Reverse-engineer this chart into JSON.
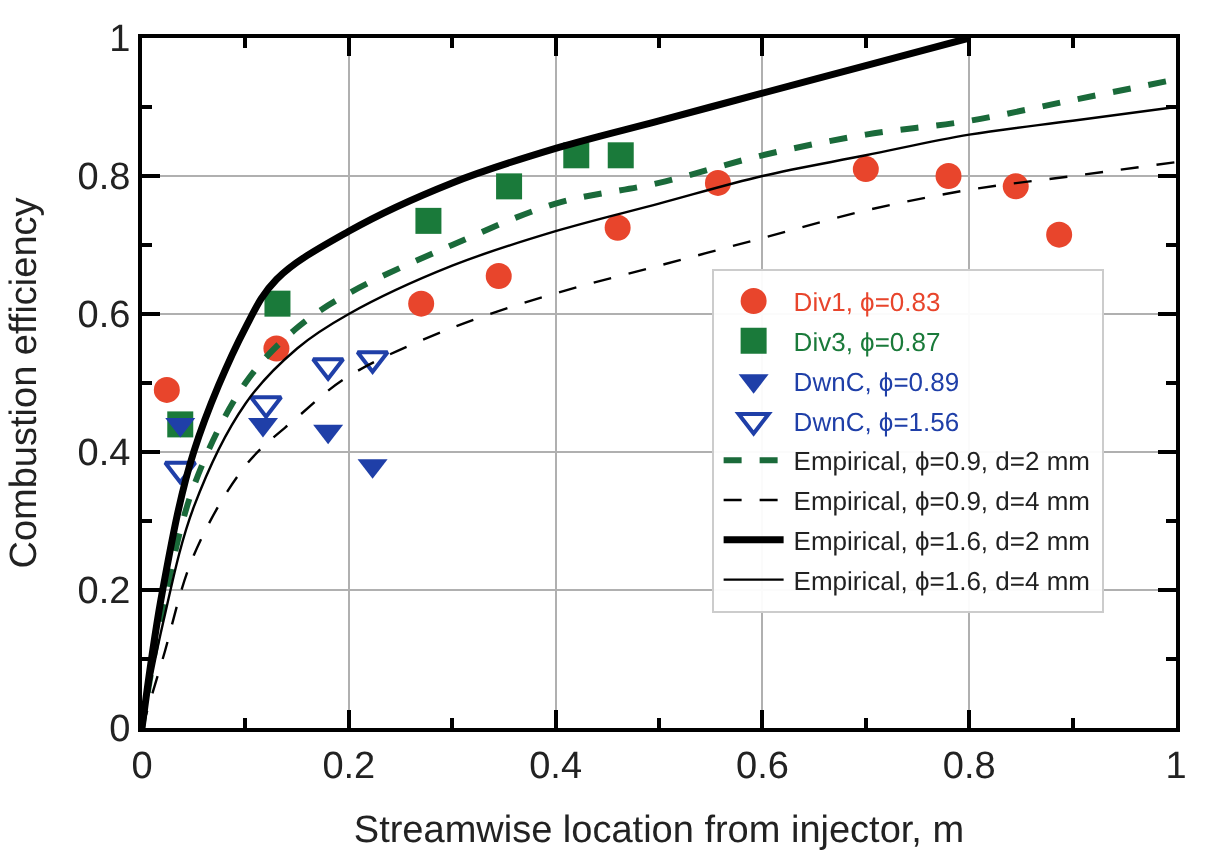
{
  "chart_data": {
    "type": "scatter",
    "xlabel": "Streamwise location from injector, m",
    "ylabel": "Combustion efficiency",
    "xlim": [
      0,
      1
    ],
    "ylim": [
      0,
      1
    ],
    "xticks": [
      0,
      {
        "value": 0.1,
        "label": null
      },
      0.2,
      {
        "value": 0.3,
        "label": null
      },
      0.4,
      {
        "value": 0.5,
        "label": null
      },
      0.6,
      {
        "value": 0.7,
        "label": null
      },
      0.8,
      {
        "value": 0.9,
        "label": null
      },
      1
    ],
    "yticks": [
      0,
      {
        "value": 0.1,
        "label": null
      },
      0.2,
      {
        "value": 0.3,
        "label": null
      },
      0.4,
      {
        "value": 0.5,
        "label": null
      },
      0.6,
      {
        "value": 0.7,
        "label": null
      },
      0.8,
      {
        "value": 0.9,
        "label": null
      },
      1
    ],
    "grid": true,
    "legend": "right",
    "series": [
      {
        "name": "Div1, ϕ=0.83",
        "color": "#e8452c",
        "marker": "circle",
        "x": [
          0.024,
          0.13,
          0.27,
          0.345,
          0.46,
          0.557,
          0.7,
          0.78,
          0.845,
          0.887
        ],
        "values": [
          0.49,
          0.55,
          0.615,
          0.655,
          0.725,
          0.79,
          0.81,
          0.8,
          0.785,
          0.715
        ]
      },
      {
        "name": "Div3, ϕ=0.87",
        "color": "#1a7a3a",
        "marker": "square",
        "x": [
          0.037,
          0.131,
          0.277,
          0.355,
          0.42,
          0.463
        ],
        "values": [
          0.44,
          0.615,
          0.735,
          0.785,
          0.83,
          0.83
        ]
      },
      {
        "name": "DwnC, ϕ=0.89",
        "color": "#1f3fa8",
        "marker": "triangle",
        "x": [
          0.037,
          0.117,
          0.18,
          0.223
        ],
        "values": [
          0.44,
          0.44,
          0.43,
          0.38
        ]
      },
      {
        "name": "DwnC, ϕ=1.56",
        "color": "#1f3fa8",
        "marker": "triangle",
        "x": [
          0.037,
          0.12,
          0.18,
          0.223
        ],
        "values": [
          0.375,
          0.47,
          0.525,
          0.535
        ]
      },
      {
        "name": "Empirical, ϕ=0.9, d=2 mm",
        "type": "line",
        "color": "#1a6a3a",
        "line_style": "dashed",
        "x": [
          0,
          0.02,
          0.05,
          0.1,
          0.15,
          0.2,
          0.3,
          0.4,
          0.5,
          0.6,
          0.7,
          0.8,
          0.9,
          1
        ],
        "values": [
          0,
          0.17,
          0.35,
          0.5,
          0.58,
          0.63,
          0.7,
          0.76,
          0.79,
          0.83,
          0.86,
          0.88,
          0.91,
          0.94
        ]
      },
      {
        "name": "Empirical, ϕ=0.9, d=4 mm",
        "type": "line",
        "color": "#000000",
        "line_style": "dashed",
        "x": [
          0,
          0.02,
          0.05,
          0.1,
          0.15,
          0.2,
          0.3,
          0.4,
          0.5,
          0.6,
          0.7,
          0.8,
          0.9,
          1
        ],
        "values": [
          0,
          0.1,
          0.25,
          0.38,
          0.45,
          0.51,
          0.58,
          0.63,
          0.67,
          0.71,
          0.75,
          0.78,
          0.8,
          0.82
        ]
      },
      {
        "name": "Empirical, ϕ=1.6, d=2 mm",
        "type": "line",
        "color": "#000000",
        "line_style": "solid",
        "x": [
          0,
          0.02,
          0.05,
          0.1,
          0.13,
          0.2,
          0.3,
          0.4,
          0.5,
          0.6,
          0.7,
          0.8
        ],
        "values": [
          0,
          0.2,
          0.4,
          0.58,
          0.65,
          0.72,
          0.79,
          0.84,
          0.88,
          0.92,
          0.96,
          1.0
        ]
      },
      {
        "name": "Empirical, ϕ=1.6, d=4 mm",
        "type": "line",
        "color": "#000000",
        "line_style": "solid",
        "x": [
          0,
          0.02,
          0.05,
          0.1,
          0.15,
          0.2,
          0.3,
          0.4,
          0.5,
          0.6,
          0.7,
          0.8,
          0.9,
          1
        ],
        "values": [
          0,
          0.15,
          0.32,
          0.47,
          0.55,
          0.6,
          0.67,
          0.72,
          0.76,
          0.8,
          0.83,
          0.86,
          0.88,
          0.9
        ]
      }
    ]
  }
}
